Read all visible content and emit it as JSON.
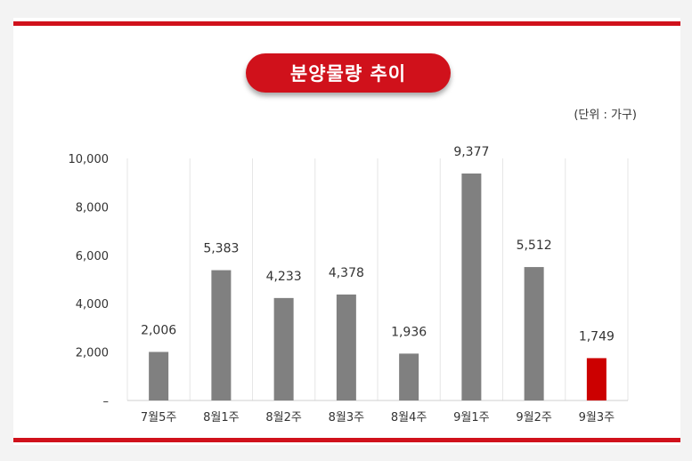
{
  "title": "분양물량 추이",
  "unit": "(단위 : 가구)",
  "colors": {
    "accent": "#d0111b",
    "bar": "#808080",
    "highlight_bar": "#cc0000",
    "highlight_label": "#b71c1c"
  },
  "chart_data": {
    "type": "bar",
    "title": "분양물량 추이",
    "categories": [
      "7월5주",
      "8월1주",
      "8월2주",
      "8월3주",
      "8월4주",
      "9월1주",
      "9월2주",
      "9월3주"
    ],
    "values": [
      2006,
      5383,
      4233,
      4378,
      1936,
      9377,
      5512,
      1749
    ],
    "value_labels": [
      "2,006",
      "5,383",
      "4,233",
      "4,378",
      "1,936",
      "9,377",
      "5,512",
      "1,749"
    ],
    "highlight_index": 7,
    "y_ticks": [
      0,
      2000,
      4000,
      6000,
      8000,
      10000
    ],
    "y_tick_labels": [
      "–",
      "2,000",
      "4,000",
      "6,000",
      "8,000",
      "10,000"
    ],
    "ylim": [
      0,
      10000
    ],
    "grid": "vertical category separators",
    "legend": "none"
  }
}
